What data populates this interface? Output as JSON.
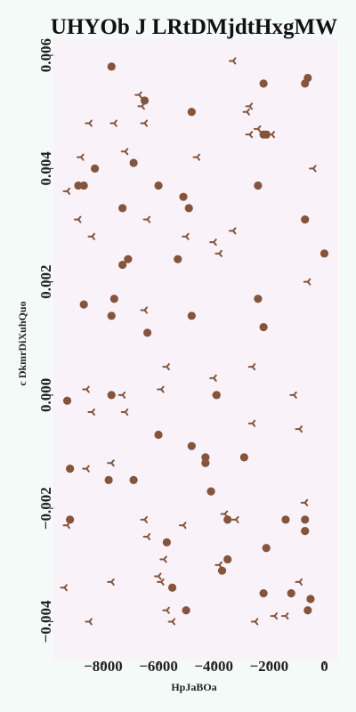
{
  "chart_data": {
    "type": "scatter",
    "title": "UHYOb J LRtDMjdtHxgMW",
    "xlabel": "HpJaBOa",
    "ylabel": "c DkmrDiXuhQuo",
    "xlim": [
      -9800,
      500
    ],
    "ylim": [
      -0.0047,
      0.0063
    ],
    "grid": false,
    "legend": "none",
    "x_ticks": [
      -8000,
      -6000,
      -4000,
      -2000,
      0
    ],
    "x_tick_labels": [
      "−8000",
      "−6000",
      "−4000",
      "−2000",
      "0"
    ],
    "y_ticks": [
      -0.004,
      -0.002,
      0.0,
      0.002,
      0.004,
      0.006
    ],
    "y_tick_labels": [
      "−0.004",
      "−0.002",
      "0.000",
      "0.002",
      "0.004",
      "0.006"
    ],
    "colors": {
      "background": "#f4faf8",
      "plot_area": "#f9f3f9",
      "marker": "#85543a",
      "text": "#222222"
    },
    "series": [
      {
        "marker": "circle",
        "points": [
          [
            -7700,
            0.0058
          ],
          [
            -6500,
            0.0052
          ],
          [
            -2200,
            0.0055
          ],
          [
            -600,
            0.0056
          ],
          [
            -700,
            0.0055
          ],
          [
            -4800,
            0.005
          ],
          [
            -8300,
            0.004
          ],
          [
            -6900,
            0.0041
          ],
          [
            -2200,
            0.0046
          ],
          [
            -2100,
            0.0046
          ],
          [
            -8900,
            0.0037
          ],
          [
            -8700,
            0.0037
          ],
          [
            -6000,
            0.0037
          ],
          [
            -2400,
            0.0037
          ],
          [
            -5100,
            0.0035
          ],
          [
            -4900,
            0.0033
          ],
          [
            -7300,
            0.0033
          ],
          [
            -700,
            0.0031
          ],
          [
            0,
            0.0025
          ],
          [
            -5300,
            0.0024
          ],
          [
            -7100,
            0.0024
          ],
          [
            -7300,
            0.0023
          ],
          [
            -8700,
            0.0016
          ],
          [
            -7600,
            0.0017
          ],
          [
            -2400,
            0.0017
          ],
          [
            -7700,
            0.0014
          ],
          [
            -4800,
            0.0014
          ],
          [
            -6400,
            0.0011
          ],
          [
            -2200,
            0.0012
          ],
          [
            -7700,
            0.0
          ],
          [
            -9300,
            -0.0001
          ],
          [
            -3900,
            -0.0
          ],
          [
            -6000,
            -0.0007
          ],
          [
            -4800,
            -0.0009
          ],
          [
            -4300,
            -0.0011
          ],
          [
            -4300,
            -0.0012
          ],
          [
            -2900,
            -0.0011
          ],
          [
            -9200,
            -0.0013
          ],
          [
            -7800,
            -0.0015
          ],
          [
            -6900,
            -0.0015
          ],
          [
            -4100,
            -0.0017
          ],
          [
            -9200,
            -0.0022
          ],
          [
            -3500,
            -0.0022
          ],
          [
            -1400,
            -0.0022
          ],
          [
            -700,
            -0.0022
          ],
          [
            -700,
            -0.0024
          ],
          [
            -5700,
            -0.0026
          ],
          [
            -2100,
            -0.0027
          ],
          [
            -3500,
            -0.0029
          ],
          [
            -3700,
            -0.0031
          ],
          [
            -5500,
            -0.0034
          ],
          [
            -2200,
            -0.0035
          ],
          [
            -1200,
            -0.0035
          ],
          [
            -500,
            -0.0036
          ],
          [
            -600,
            -0.0038
          ],
          [
            -5000,
            -0.0038
          ]
        ]
      },
      {
        "marker": "tri",
        "points": [
          [
            -3300,
            0.0059
          ],
          [
            -6700,
            0.0053
          ],
          [
            -6600,
            0.0051
          ],
          [
            -2700,
            0.0051
          ],
          [
            -8500,
            0.0048
          ],
          [
            -7600,
            0.0048
          ],
          [
            -6500,
            0.0048
          ],
          [
            -2800,
            0.005
          ],
          [
            -2400,
            0.0047
          ],
          [
            -2100,
            0.0046
          ],
          [
            -1900,
            0.0046
          ],
          [
            -2700,
            0.0046
          ],
          [
            -7200,
            0.0043
          ],
          [
            -8800,
            0.0042
          ],
          [
            -4600,
            0.0042
          ],
          [
            -400,
            0.004
          ],
          [
            -9300,
            0.0036
          ],
          [
            -8900,
            0.0031
          ],
          [
            -6400,
            0.0031
          ],
          [
            -8400,
            0.0028
          ],
          [
            -5000,
            0.0028
          ],
          [
            -3300,
            0.0029
          ],
          [
            -4000,
            0.0027
          ],
          [
            -3800,
            0.0025
          ],
          [
            -600,
            0.002
          ],
          [
            -6500,
            0.0015
          ],
          [
            -5700,
            0.0005
          ],
          [
            -2600,
            0.0005
          ],
          [
            -8600,
            0.0001
          ],
          [
            -7300,
            0.0
          ],
          [
            -5900,
            0.0001
          ],
          [
            -4000,
            0.0003
          ],
          [
            -3900,
            0.0
          ],
          [
            -1100,
            0.0
          ],
          [
            -8400,
            -0.0003
          ],
          [
            -7200,
            -0.0003
          ],
          [
            -2600,
            -0.0005
          ],
          [
            -900,
            -0.0006
          ],
          [
            -8600,
            -0.0013
          ],
          [
            -7700,
            -0.0012
          ],
          [
            -700,
            -0.0019
          ],
          [
            -9300,
            -0.0023
          ],
          [
            -6500,
            -0.0022
          ],
          [
            -3600,
            -0.0021
          ],
          [
            -3200,
            -0.0022
          ],
          [
            -5100,
            -0.0023
          ],
          [
            -6400,
            -0.0025
          ],
          [
            -5800,
            -0.0029
          ],
          [
            -3800,
            -0.003
          ],
          [
            -6000,
            -0.0032
          ],
          [
            -5900,
            -0.0033
          ],
          [
            -9400,
            -0.0034
          ],
          [
            -7700,
            -0.0033
          ],
          [
            -900,
            -0.0033
          ],
          [
            -5700,
            -0.0038
          ],
          [
            -5500,
            -0.004
          ],
          [
            -8500,
            -0.004
          ],
          [
            -2500,
            -0.004
          ],
          [
            -1800,
            -0.0039
          ],
          [
            -1400,
            -0.0039
          ]
        ]
      }
    ]
  }
}
